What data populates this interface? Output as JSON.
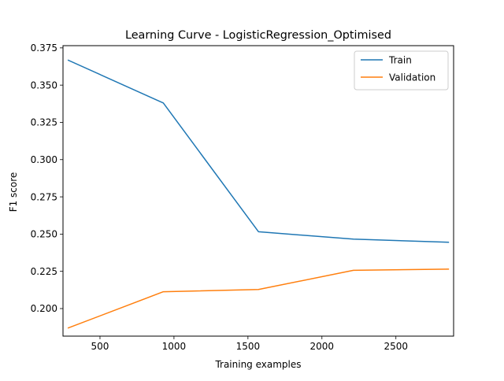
{
  "chart_data": {
    "type": "line",
    "title": "Learning Curve - LogisticRegression_Optimised",
    "xlabel": "Training examples",
    "ylabel": "F1 score",
    "xlim": [
      250,
      2890
    ],
    "ylim": [
      0.1815,
      0.3765
    ],
    "xticks": [
      500,
      1000,
      1500,
      2000,
      2500
    ],
    "yticks": [
      0.2,
      0.225,
      0.25,
      0.275,
      0.3,
      0.325,
      0.35,
      0.375
    ],
    "xtick_labels": [
      "500",
      "1000",
      "1500",
      "2000",
      "2500"
    ],
    "ytick_labels": [
      "0.200",
      "0.225",
      "0.250",
      "0.275",
      "0.300",
      "0.325",
      "0.350",
      "0.375"
    ],
    "grid": false,
    "legend_position": "top-right",
    "x": [
      286,
      928,
      1571,
      2213,
      2855
    ],
    "series": [
      {
        "name": "Train",
        "color": "#1f77b4",
        "values": [
          0.3667,
          0.338,
          0.2516,
          0.2466,
          0.2445
        ]
      },
      {
        "name": "Validation",
        "color": "#ff7f0e",
        "values": [
          0.187,
          0.2113,
          0.2128,
          0.2257,
          0.2265
        ]
      }
    ]
  }
}
